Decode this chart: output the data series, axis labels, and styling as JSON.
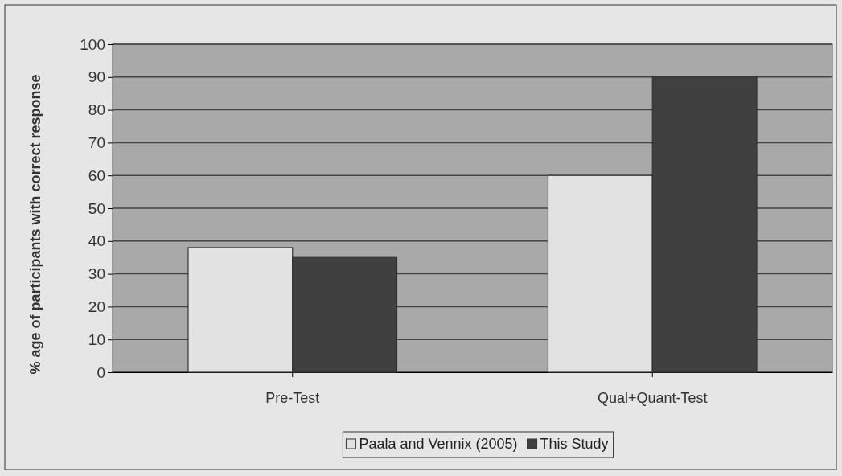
{
  "chart_data": {
    "type": "bar",
    "ylabel": "% age of participants with correct response",
    "categories": [
      "Pre-Test",
      "Qual+Quant-Test"
    ],
    "series": [
      {
        "name": "Paala and Vennix (2005)",
        "color": "#e2e2e2",
        "values": [
          38,
          60
        ]
      },
      {
        "name": "This Study",
        "color": "#404040",
        "values": [
          35,
          90
        ]
      }
    ],
    "ylim": [
      0,
      100
    ],
    "yticks": [
      0,
      10,
      20,
      30,
      40,
      50,
      60,
      70,
      80,
      90,
      100
    ],
    "grid": "y",
    "legend": "bottom"
  }
}
